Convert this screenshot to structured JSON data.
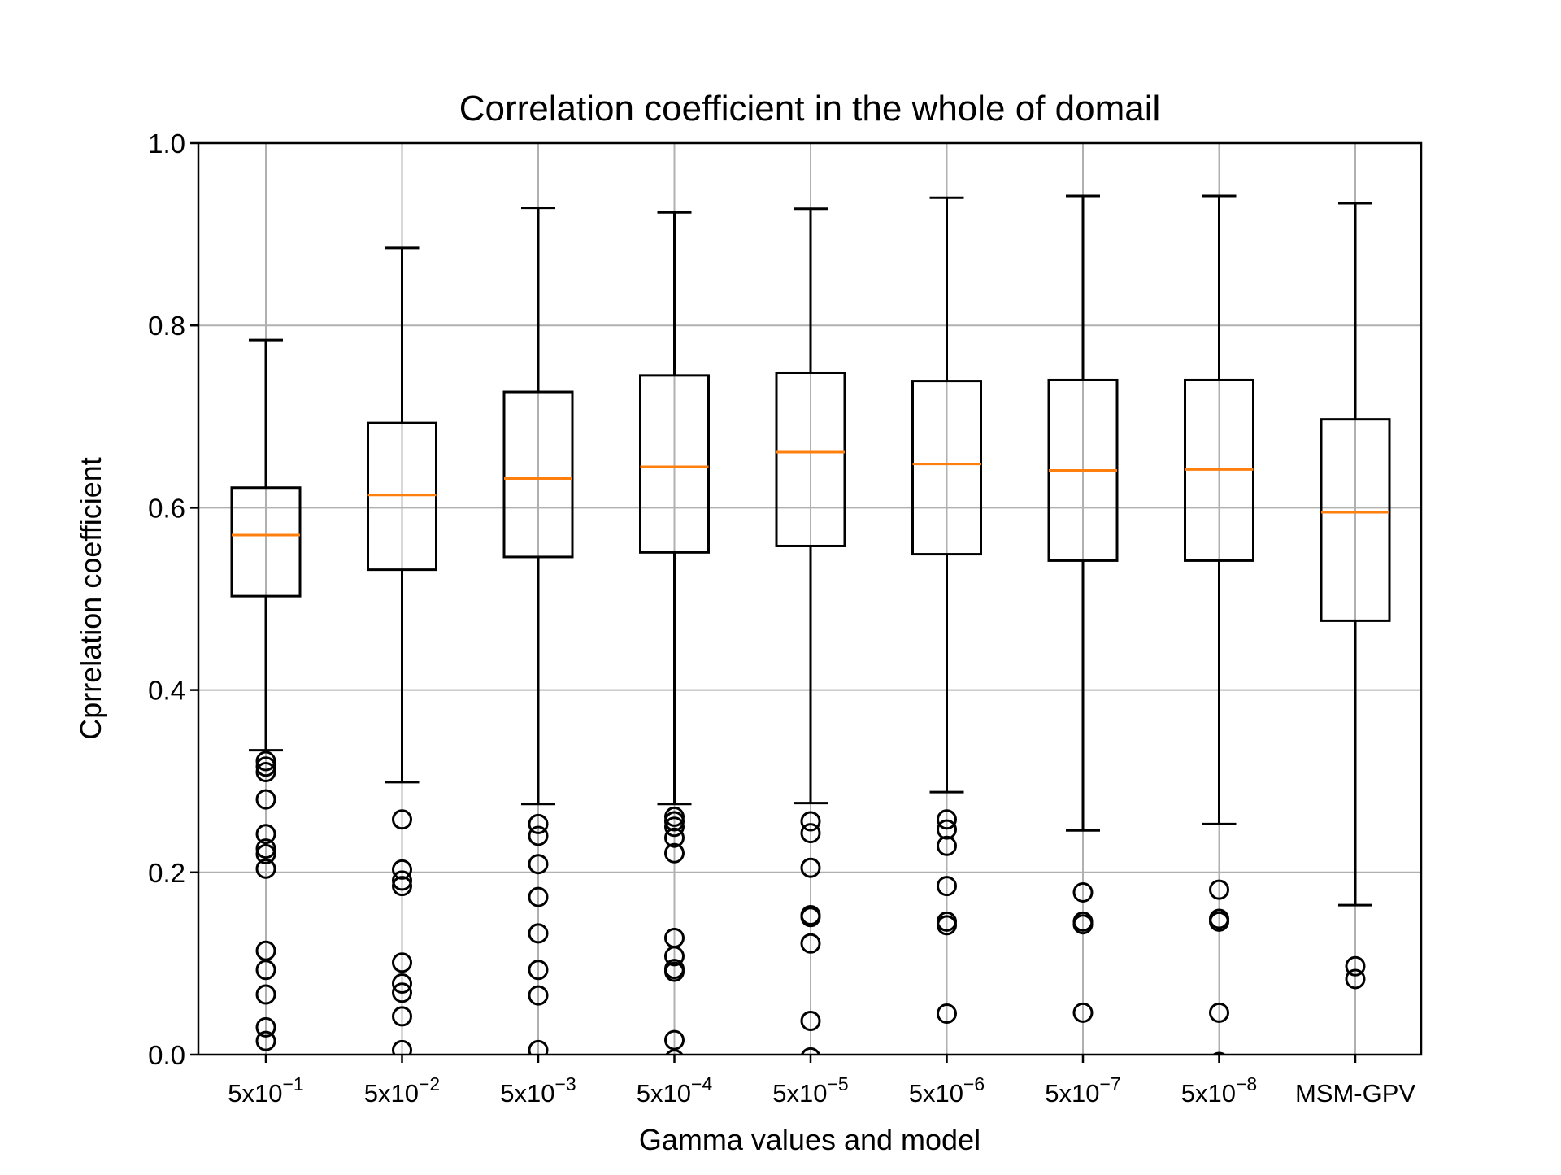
{
  "chart_data": {
    "type": "boxplot",
    "title": "Correlation coefficient in the whole of domail",
    "xlabel": "Gamma values and model",
    "ylabel": "Cprrelation coefficient",
    "ylim": [
      0.0,
      1.0
    ],
    "yticks": [
      "0.0",
      "0.2",
      "0.4",
      "0.6",
      "0.8",
      "1.0"
    ],
    "grid": true,
    "colors": {
      "box": "#000000",
      "median": "#ff7f0e",
      "grid": "#b0b0b0"
    },
    "categories": [
      {
        "base": "5x10",
        "exp": "−1"
      },
      {
        "base": "5x10",
        "exp": "−2"
      },
      {
        "base": "5x10",
        "exp": "−3"
      },
      {
        "base": "5x10",
        "exp": "−4"
      },
      {
        "base": "5x10",
        "exp": "−5"
      },
      {
        "base": "5x10",
        "exp": "−6"
      },
      {
        "base": "5x10",
        "exp": "−7"
      },
      {
        "base": "5x10",
        "exp": "−8"
      },
      {
        "base": "MSM-GPV",
        "exp": ""
      }
    ],
    "boxes": [
      {
        "whisker_low": 0.334,
        "q1": 0.503,
        "median": 0.57,
        "q3": 0.622,
        "whisker_high": 0.784,
        "fliers": [
          0.322,
          0.316,
          0.31,
          0.28,
          0.242,
          0.226,
          0.22,
          0.204,
          0.114,
          0.093,
          0.066,
          0.03,
          0.015
        ]
      },
      {
        "whisker_low": 0.299,
        "q1": 0.532,
        "median": 0.614,
        "q3": 0.693,
        "whisker_high": 0.885,
        "fliers": [
          0.258,
          0.203,
          0.191,
          0.185,
          0.101,
          0.078,
          0.068,
          0.042,
          0.005
        ]
      },
      {
        "whisker_low": 0.275,
        "q1": 0.546,
        "median": 0.632,
        "q3": 0.727,
        "whisker_high": 0.929,
        "fliers": [
          0.253,
          0.24,
          0.209,
          0.173,
          0.133,
          0.093,
          0.065,
          0.005
        ]
      },
      {
        "whisker_low": 0.275,
        "q1": 0.551,
        "median": 0.645,
        "q3": 0.745,
        "whisker_high": 0.924,
        "fliers": [
          0.261,
          0.256,
          0.25,
          0.238,
          0.221,
          0.128,
          0.108,
          0.094,
          0.091,
          0.016,
          -0.005
        ]
      },
      {
        "whisker_low": 0.276,
        "q1": 0.558,
        "median": 0.661,
        "q3": 0.748,
        "whisker_high": 0.928,
        "fliers": [
          0.256,
          0.243,
          0.205,
          0.153,
          0.151,
          0.122,
          0.037,
          -0.003
        ]
      },
      {
        "whisker_low": 0.288,
        "q1": 0.549,
        "median": 0.648,
        "q3": 0.739,
        "whisker_high": 0.94,
        "fliers": [
          0.258,
          0.247,
          0.229,
          0.185,
          0.146,
          0.142,
          0.045,
          -0.01
        ]
      },
      {
        "whisker_low": 0.246,
        "q1": 0.542,
        "median": 0.641,
        "q3": 0.74,
        "whisker_high": 0.942,
        "fliers": [
          0.178,
          0.146,
          0.143,
          0.046
        ]
      },
      {
        "whisker_low": 0.253,
        "q1": 0.542,
        "median": 0.642,
        "q3": 0.74,
        "whisker_high": 0.942,
        "fliers": [
          0.181,
          0.149,
          0.146,
          0.046,
          -0.008
        ]
      },
      {
        "whisker_low": 0.164,
        "q1": 0.476,
        "median": 0.595,
        "q3": 0.697,
        "whisker_high": 0.934,
        "fliers": [
          0.097,
          0.083
        ]
      }
    ]
  }
}
